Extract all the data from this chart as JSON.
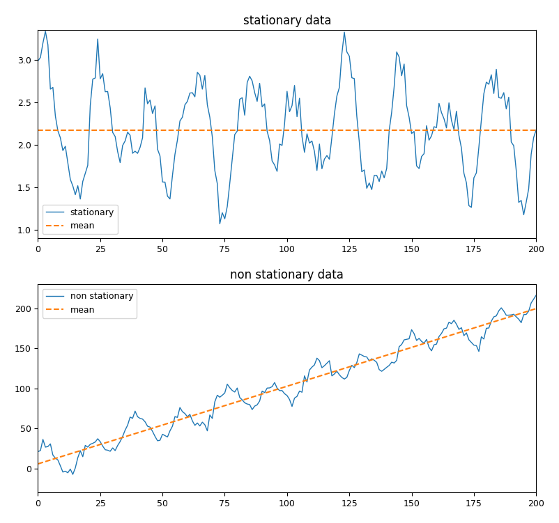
{
  "title_stationary": "stationary data",
  "title_nonstationary": "non stationary data",
  "legend_stationary": "stationary",
  "legend_nonstationary": "non stationary",
  "legend_mean": "mean",
  "line_color": "#1f77b4",
  "mean_color": "#ff7f0e",
  "n_points": 201,
  "stationary_mean": 2.17,
  "xlim": [
    0,
    200
  ],
  "title_fontsize": 12,
  "figsize": [
    8.02,
    7.51
  ],
  "dpi": 100
}
